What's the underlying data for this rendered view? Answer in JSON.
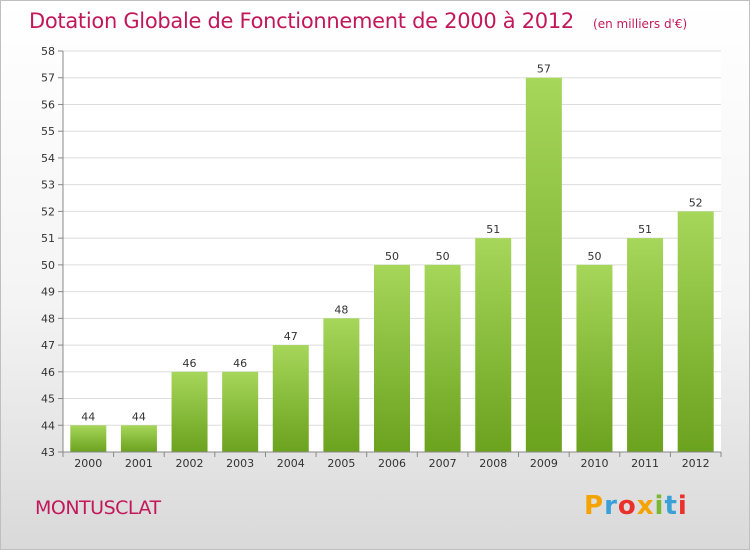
{
  "header": {
    "title": "Dotation Globale de Fonctionnement de 2000 à 2012",
    "subtitle": "(en milliers d'€)"
  },
  "footer": {
    "commune": "MONTUSCLAT",
    "logo_letters": [
      "P",
      "r",
      "o",
      "x",
      "i",
      "t",
      "i"
    ],
    "logo_colors": [
      "#f4a300",
      "#3aa0d8",
      "#e9302a",
      "#f4a300",
      "#7ab833",
      "#3aa0d8",
      "#e9302a"
    ]
  },
  "colors": {
    "title": "#c2185b",
    "bar_light": "#a6d65a",
    "bar_dark": "#6ba21e",
    "axis": "#888888",
    "grid": "#dddddd"
  },
  "chart_data": {
    "type": "bar",
    "title": "Dotation Globale de Fonctionnement de 2000 à 2012",
    "subtitle": "(en milliers d'€)",
    "categories": [
      "2000",
      "2001",
      "2002",
      "2003",
      "2004",
      "2005",
      "2006",
      "2007",
      "2008",
      "2009",
      "2010",
      "2011",
      "2012"
    ],
    "values": [
      44,
      44,
      46,
      46,
      47,
      48,
      50,
      50,
      51,
      57,
      50,
      51,
      52
    ],
    "ylim": [
      43,
      58
    ],
    "yticks": [
      43,
      44,
      45,
      46,
      47,
      48,
      49,
      50,
      51,
      52,
      53,
      54,
      55,
      56,
      57,
      58
    ],
    "xlabel": "",
    "ylabel": "",
    "grid": true,
    "data_labels": true
  }
}
